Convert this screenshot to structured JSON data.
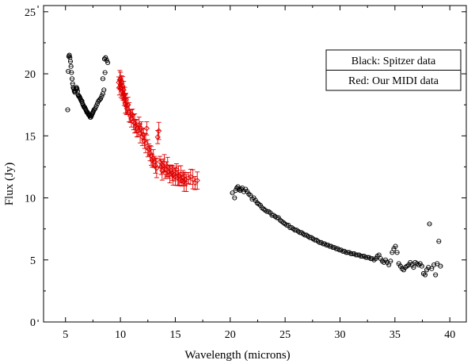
{
  "chart_data": {
    "type": "scatter",
    "title": "",
    "xlabel": "Wavelength  (microns)",
    "ylabel": "Flux  (Jy)",
    "xlim": [
      3,
      41.5
    ],
    "ylim": [
      0,
      25.5
    ],
    "xticks": [
      5,
      10,
      15,
      20,
      25,
      30,
      35,
      40
    ],
    "yticks": [
      0,
      5,
      10,
      15,
      20,
      25
    ],
    "grid": false,
    "legend": {
      "position": "top-right",
      "entries": [
        "Black:  Spitzer  data",
        "Red:  Our  MIDI  data"
      ]
    },
    "colors": {
      "spitzer": "#000000",
      "midi": "#e00000"
    },
    "series": [
      {
        "name": "Spitzer data",
        "color": "#000000",
        "marker": "circle-open",
        "points": [
          [
            5.2,
            17.1
          ],
          [
            5.25,
            20.2
          ],
          [
            5.3,
            21.4
          ],
          [
            5.35,
            21.5
          ],
          [
            5.4,
            21.3
          ],
          [
            5.45,
            21.0
          ],
          [
            5.5,
            20.6
          ],
          [
            5.55,
            20.1
          ],
          [
            5.6,
            19.6
          ],
          [
            5.65,
            19.2
          ],
          [
            5.7,
            18.9
          ],
          [
            5.75,
            18.8
          ],
          [
            5.8,
            18.6
          ],
          [
            5.85,
            18.5
          ],
          [
            5.9,
            18.6
          ],
          [
            5.95,
            18.8
          ],
          [
            6.0,
            18.9
          ],
          [
            6.05,
            18.8
          ],
          [
            6.1,
            18.6
          ],
          [
            6.15,
            18.3
          ],
          [
            6.2,
            18.2
          ],
          [
            6.25,
            18.2
          ],
          [
            6.3,
            18.1
          ],
          [
            6.35,
            18.0
          ],
          [
            6.4,
            17.9
          ],
          [
            6.45,
            17.8
          ],
          [
            6.5,
            17.8
          ],
          [
            6.55,
            17.6
          ],
          [
            6.6,
            17.5
          ],
          [
            6.65,
            17.4
          ],
          [
            6.7,
            17.3
          ],
          [
            6.75,
            17.3
          ],
          [
            6.8,
            17.2
          ],
          [
            6.85,
            17.1
          ],
          [
            6.9,
            17.0
          ],
          [
            6.95,
            16.9
          ],
          [
            7.0,
            16.9
          ],
          [
            7.05,
            16.8
          ],
          [
            7.1,
            16.7
          ],
          [
            7.15,
            16.7
          ],
          [
            7.2,
            16.6
          ],
          [
            7.25,
            16.5
          ],
          [
            7.3,
            16.5
          ],
          [
            7.35,
            16.6
          ],
          [
            7.4,
            16.7
          ],
          [
            7.45,
            16.8
          ],
          [
            7.5,
            16.9
          ],
          [
            7.55,
            17.0
          ],
          [
            7.6,
            17.1
          ],
          [
            7.7,
            17.2
          ],
          [
            7.8,
            17.4
          ],
          [
            7.9,
            17.6
          ],
          [
            8.0,
            17.8
          ],
          [
            8.1,
            17.9
          ],
          [
            8.2,
            18.0
          ],
          [
            8.3,
            18.2
          ],
          [
            8.4,
            18.4
          ],
          [
            8.5,
            18.7
          ],
          [
            8.55,
            21.2
          ],
          [
            8.65,
            21.3
          ],
          [
            8.75,
            21.1
          ],
          [
            8.85,
            20.9
          ],
          [
            8.6,
            20.1
          ],
          [
            8.4,
            19.6
          ],
          [
            20.2,
            10.4
          ],
          [
            20.4,
            10.0
          ],
          [
            20.5,
            10.6
          ],
          [
            20.6,
            10.8
          ],
          [
            20.7,
            10.9
          ],
          [
            20.8,
            10.7
          ],
          [
            20.9,
            10.6
          ],
          [
            21.0,
            10.7
          ],
          [
            21.1,
            10.8
          ],
          [
            21.25,
            10.5
          ],
          [
            21.4,
            10.7
          ],
          [
            21.55,
            10.5
          ],
          [
            21.7,
            10.3
          ],
          [
            21.85,
            10.2
          ],
          [
            22.0,
            9.9
          ],
          [
            22.15,
            10.0
          ],
          [
            22.3,
            9.8
          ],
          [
            22.45,
            9.6
          ],
          [
            22.6,
            9.5
          ],
          [
            22.75,
            9.4
          ],
          [
            22.9,
            9.2
          ],
          [
            23.05,
            9.1
          ],
          [
            23.2,
            9.0
          ],
          [
            23.35,
            8.9
          ],
          [
            23.5,
            8.9
          ],
          [
            23.65,
            8.8
          ],
          [
            23.8,
            8.6
          ],
          [
            23.95,
            8.6
          ],
          [
            24.1,
            8.5
          ],
          [
            24.25,
            8.4
          ],
          [
            24.4,
            8.4
          ],
          [
            24.55,
            8.2
          ],
          [
            24.7,
            8.1
          ],
          [
            24.85,
            8.0
          ],
          [
            25.0,
            7.9
          ],
          [
            25.15,
            7.8
          ],
          [
            25.3,
            7.8
          ],
          [
            25.45,
            7.6
          ],
          [
            25.6,
            7.6
          ],
          [
            25.75,
            7.5
          ],
          [
            25.9,
            7.4
          ],
          [
            26.05,
            7.4
          ],
          [
            26.2,
            7.3
          ],
          [
            26.35,
            7.2
          ],
          [
            26.5,
            7.2
          ],
          [
            26.65,
            7.1
          ],
          [
            26.8,
            7.0
          ],
          [
            26.95,
            7.0
          ],
          [
            27.1,
            6.9
          ],
          [
            27.25,
            6.8
          ],
          [
            27.4,
            6.8
          ],
          [
            27.55,
            6.7
          ],
          [
            27.7,
            6.6
          ],
          [
            27.85,
            6.6
          ],
          [
            28.0,
            6.5
          ],
          [
            28.15,
            6.4
          ],
          [
            28.3,
            6.4
          ],
          [
            28.45,
            6.3
          ],
          [
            28.6,
            6.3
          ],
          [
            28.75,
            6.2
          ],
          [
            28.9,
            6.2
          ],
          [
            29.05,
            6.1
          ],
          [
            29.2,
            6.1
          ],
          [
            29.35,
            6.0
          ],
          [
            29.5,
            6.0
          ],
          [
            29.65,
            5.9
          ],
          [
            29.8,
            5.9
          ],
          [
            29.95,
            5.8
          ],
          [
            30.1,
            5.8
          ],
          [
            30.25,
            5.7
          ],
          [
            30.4,
            5.7
          ],
          [
            30.55,
            5.6
          ],
          [
            30.7,
            5.6
          ],
          [
            30.85,
            5.6
          ],
          [
            31.0,
            5.5
          ],
          [
            31.15,
            5.5
          ],
          [
            31.3,
            5.5
          ],
          [
            31.45,
            5.4
          ],
          [
            31.6,
            5.4
          ],
          [
            31.75,
            5.4
          ],
          [
            31.9,
            5.3
          ],
          [
            32.05,
            5.3
          ],
          [
            32.2,
            5.3
          ],
          [
            32.35,
            5.2
          ],
          [
            32.5,
            5.2
          ],
          [
            32.65,
            5.2
          ],
          [
            32.8,
            5.1
          ],
          [
            32.95,
            5.1
          ],
          [
            33.1,
            5.0
          ],
          [
            33.25,
            5.1
          ],
          [
            33.4,
            5.3
          ],
          [
            33.55,
            5.4
          ],
          [
            33.7,
            5.1
          ],
          [
            33.85,
            4.9
          ],
          [
            34.0,
            4.8
          ],
          [
            34.15,
            5.0
          ],
          [
            34.3,
            4.8
          ],
          [
            34.45,
            4.6
          ],
          [
            34.6,
            4.9
          ],
          [
            34.75,
            5.6
          ],
          [
            34.9,
            5.9
          ],
          [
            35.05,
            6.1
          ],
          [
            35.2,
            5.6
          ],
          [
            35.35,
            4.7
          ],
          [
            35.5,
            4.5
          ],
          [
            35.65,
            4.3
          ],
          [
            35.8,
            4.2
          ],
          [
            35.95,
            4.4
          ],
          [
            36.1,
            4.5
          ],
          [
            36.25,
            4.6
          ],
          [
            36.4,
            4.8
          ],
          [
            36.55,
            4.6
          ],
          [
            36.7,
            4.4
          ],
          [
            36.85,
            4.8
          ],
          [
            37.0,
            4.7
          ],
          [
            37.15,
            4.6
          ],
          [
            37.3,
            4.7
          ],
          [
            37.45,
            4.5
          ],
          [
            37.6,
            3.9
          ],
          [
            37.75,
            3.8
          ],
          [
            37.9,
            4.2
          ],
          [
            38.05,
            4.4
          ],
          [
            38.15,
            7.9
          ],
          [
            38.35,
            4.3
          ],
          [
            38.55,
            4.6
          ],
          [
            38.7,
            3.8
          ],
          [
            38.85,
            4.7
          ],
          [
            39.0,
            6.5
          ],
          [
            39.15,
            4.5
          ]
        ]
      },
      {
        "name": "Our MIDI data",
        "color": "#e00000",
        "marker": "diamond-open",
        "error_bars": true,
        "points": [
          [
            9.85,
            19.3
          ],
          [
            9.9,
            18.9
          ],
          [
            9.95,
            19.5
          ],
          [
            10.0,
            19.6
          ],
          [
            10.05,
            18.8
          ],
          [
            10.1,
            19.4
          ],
          [
            10.15,
            18.6
          ],
          [
            10.2,
            19.0
          ],
          [
            10.25,
            18.4
          ],
          [
            10.3,
            18.7
          ],
          [
            10.35,
            17.9
          ],
          [
            10.4,
            18.3
          ],
          [
            10.45,
            17.6
          ],
          [
            10.5,
            17.9
          ],
          [
            10.55,
            17.4
          ],
          [
            10.6,
            17.2
          ],
          [
            10.7,
            17.5
          ],
          [
            10.8,
            16.9
          ],
          [
            10.9,
            16.6
          ],
          [
            11.0,
            16.4
          ],
          [
            11.1,
            16.7
          ],
          [
            11.2,
            16.1
          ],
          [
            11.3,
            16.0
          ],
          [
            11.4,
            15.8
          ],
          [
            11.5,
            15.6
          ],
          [
            11.6,
            15.4
          ],
          [
            11.7,
            15.9
          ],
          [
            11.8,
            15.2
          ],
          [
            11.9,
            15.6
          ],
          [
            12.0,
            14.9
          ],
          [
            12.1,
            15.1
          ],
          [
            12.2,
            14.6
          ],
          [
            12.3,
            14.4
          ],
          [
            12.4,
            15.6
          ],
          [
            12.5,
            14.0
          ],
          [
            12.6,
            13.9
          ],
          [
            12.7,
            13.6
          ],
          [
            12.8,
            13.4
          ],
          [
            12.9,
            13.0
          ],
          [
            13.0,
            13.2
          ],
          [
            13.1,
            12.9
          ],
          [
            13.2,
            12.6
          ],
          [
            13.3,
            12.4
          ],
          [
            13.4,
            14.9
          ],
          [
            13.5,
            15.4
          ],
          [
            13.6,
            12.9
          ],
          [
            13.7,
            12.5
          ],
          [
            13.8,
            12.2
          ],
          [
            13.9,
            12.6
          ],
          [
            14.0,
            12.8
          ],
          [
            14.1,
            12.0
          ],
          [
            14.2,
            12.3
          ],
          [
            14.3,
            12.5
          ],
          [
            14.4,
            12.1
          ],
          [
            14.5,
            11.9
          ],
          [
            14.6,
            12.2
          ],
          [
            14.7,
            12.0
          ],
          [
            14.8,
            11.8
          ],
          [
            14.9,
            11.9
          ],
          [
            15.0,
            11.7
          ],
          [
            15.1,
            12.3
          ],
          [
            15.2,
            11.6
          ],
          [
            15.3,
            11.8
          ],
          [
            15.4,
            11.5
          ],
          [
            15.5,
            11.9
          ],
          [
            15.6,
            11.4
          ],
          [
            15.7,
            11.6
          ],
          [
            15.8,
            11.3
          ],
          [
            15.9,
            11.5
          ],
          [
            16.0,
            11.2
          ],
          [
            16.2,
            11.6
          ],
          [
            16.4,
            11.7
          ],
          [
            16.6,
            11.5
          ],
          [
            16.8,
            11.2
          ],
          [
            17.0,
            11.4
          ]
        ]
      }
    ]
  }
}
